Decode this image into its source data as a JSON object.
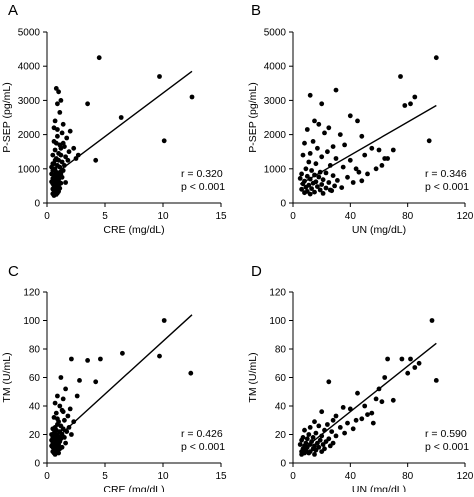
{
  "chart_data": [
    {
      "panel": "A",
      "type": "scatter",
      "xlabel": "CRE (mg/dL)",
      "ylabel": "P-SEP (pg/mL)",
      "xlim": [
        0,
        15
      ],
      "ylim": [
        0,
        5000
      ],
      "xticks": [
        0,
        5,
        10,
        15
      ],
      "yticks": [
        0,
        1000,
        2000,
        3000,
        4000,
        5000
      ],
      "stats": [
        "r = 0.320",
        "p < 0.001"
      ],
      "regression": {
        "x1": 0.5,
        "y1": 800,
        "x2": 12.5,
        "y2": 3850
      },
      "points": [
        [
          4.5,
          4250
        ],
        [
          9.7,
          3700
        ],
        [
          12.5,
          3100
        ],
        [
          10.1,
          1820
        ],
        [
          6.4,
          2500
        ],
        [
          3.5,
          2900
        ],
        [
          4.2,
          1250
        ],
        [
          0.8,
          3350
        ],
        [
          1.0,
          3250
        ],
        [
          1.2,
          3000
        ],
        [
          0.9,
          2900
        ],
        [
          1.1,
          2650
        ],
        [
          0.7,
          2400
        ],
        [
          1.4,
          2300
        ],
        [
          0.6,
          2200
        ],
        [
          0.9,
          2150
        ],
        [
          1.3,
          2050
        ],
        [
          2.0,
          2100
        ],
        [
          1.7,
          1900
        ],
        [
          0.6,
          1800
        ],
        [
          0.8,
          1750
        ],
        [
          1.1,
          1700
        ],
        [
          1.5,
          1650
        ],
        [
          2.3,
          1600
        ],
        [
          1.9,
          1500
        ],
        [
          0.7,
          1550
        ],
        [
          1.0,
          1450
        ],
        [
          1.2,
          1400
        ],
        [
          1.6,
          1350
        ],
        [
          0.5,
          1400
        ],
        [
          0.8,
          1300
        ],
        [
          1.0,
          1250
        ],
        [
          1.3,
          1200
        ],
        [
          0.6,
          1150
        ],
        [
          0.9,
          1100
        ],
        [
          1.1,
          1050
        ],
        [
          0.7,
          1000
        ],
        [
          1.4,
          950
        ],
        [
          0.5,
          950
        ],
        [
          0.8,
          900
        ],
        [
          1.0,
          880
        ],
        [
          1.2,
          850
        ],
        [
          0.6,
          820
        ],
        [
          0.9,
          800
        ],
        [
          0.7,
          760
        ],
        [
          1.1,
          740
        ],
        [
          0.5,
          720
        ],
        [
          0.8,
          700
        ],
        [
          1.0,
          680
        ],
        [
          0.6,
          650
        ],
        [
          0.9,
          630
        ],
        [
          0.7,
          600
        ],
        [
          1.2,
          580
        ],
        [
          0.5,
          560
        ],
        [
          0.8,
          540
        ],
        [
          1.0,
          520
        ],
        [
          0.6,
          500
        ],
        [
          0.9,
          480
        ],
        [
          0.7,
          450
        ],
        [
          1.1,
          430
        ],
        [
          0.5,
          410
        ],
        [
          0.8,
          390
        ],
        [
          0.6,
          360
        ],
        [
          1.0,
          340
        ],
        [
          0.7,
          310
        ],
        [
          0.9,
          290
        ],
        [
          0.5,
          270
        ],
        [
          0.8,
          250
        ],
        [
          0.6,
          220
        ],
        [
          1.2,
          900
        ],
        [
          1.5,
          1100
        ],
        [
          1.8,
          1250
        ],
        [
          2.5,
          1300
        ],
        [
          1.3,
          750
        ],
        [
          1.6,
          600
        ],
        [
          0.4,
          620
        ],
        [
          0.4,
          850
        ],
        [
          0.4,
          1050
        ],
        [
          1.2,
          1600
        ],
        [
          0.9,
          1950
        ],
        [
          0.7,
          1250
        ],
        [
          1.4,
          1750
        ],
        [
          2.7,
          1400
        ],
        [
          0.5,
          1150
        ]
      ]
    },
    {
      "panel": "B",
      "type": "scatter",
      "xlabel": "UN (mg/dL)",
      "ylabel": "P-SEP (pg/mL)",
      "xlim": [
        0,
        120
      ],
      "ylim": [
        0,
        5000
      ],
      "xticks": [
        0,
        40,
        80,
        120
      ],
      "yticks": [
        0,
        1000,
        2000,
        3000,
        4000,
        5000
      ],
      "stats": [
        "r = 0.346",
        "p < 0.001"
      ],
      "regression": {
        "x1": 5,
        "y1": 550,
        "x2": 100,
        "y2": 2850
      },
      "points": [
        [
          100,
          4250
        ],
        [
          75,
          3700
        ],
        [
          85,
          3100
        ],
        [
          82,
          2900
        ],
        [
          78,
          2850
        ],
        [
          30,
          3300
        ],
        [
          12,
          3150
        ],
        [
          20,
          2900
        ],
        [
          40,
          2550
        ],
        [
          45,
          2400
        ],
        [
          15,
          2400
        ],
        [
          18,
          2300
        ],
        [
          25,
          2200
        ],
        [
          10,
          2150
        ],
        [
          22,
          2050
        ],
        [
          33,
          2000
        ],
        [
          48,
          1950
        ],
        [
          55,
          1600
        ],
        [
          60,
          1550
        ],
        [
          64,
          1300
        ],
        [
          66,
          1300
        ],
        [
          70,
          1550
        ],
        [
          95,
          1820
        ],
        [
          50,
          1400
        ],
        [
          36,
          1700
        ],
        [
          28,
          1650
        ],
        [
          14,
          1800
        ],
        [
          8,
          1750
        ],
        [
          17,
          1600
        ],
        [
          24,
          1500
        ],
        [
          12,
          1450
        ],
        [
          7,
          1400
        ],
        [
          20,
          1350
        ],
        [
          30,
          1300
        ],
        [
          40,
          1250
        ],
        [
          11,
          1200
        ],
        [
          16,
          1150
        ],
        [
          26,
          1100
        ],
        [
          35,
          1050
        ],
        [
          44,
          1000
        ],
        [
          9,
          1000
        ],
        [
          13,
          950
        ],
        [
          19,
          900
        ],
        [
          23,
          880
        ],
        [
          6,
          850
        ],
        [
          15,
          820
        ],
        [
          28,
          800
        ],
        [
          10,
          780
        ],
        [
          18,
          760
        ],
        [
          38,
          750
        ],
        [
          5,
          720
        ],
        [
          12,
          700
        ],
        [
          21,
          680
        ],
        [
          31,
          660
        ],
        [
          8,
          640
        ],
        [
          16,
          620
        ],
        [
          25,
          600
        ],
        [
          14,
          580
        ],
        [
          7,
          560
        ],
        [
          20,
          540
        ],
        [
          11,
          520
        ],
        [
          29,
          500
        ],
        [
          17,
          480
        ],
        [
          9,
          460
        ],
        [
          23,
          440
        ],
        [
          13,
          420
        ],
        [
          6,
          400
        ],
        [
          19,
          380
        ],
        [
          27,
          360
        ],
        [
          10,
          340
        ],
        [
          15,
          320
        ],
        [
          8,
          300
        ],
        [
          21,
          280
        ],
        [
          12,
          260
        ],
        [
          46,
          900
        ],
        [
          52,
          850
        ],
        [
          58,
          1000
        ],
        [
          42,
          600
        ],
        [
          34,
          450
        ],
        [
          26,
          380
        ],
        [
          62,
          1100
        ],
        [
          48,
          650
        ]
      ]
    },
    {
      "panel": "C",
      "type": "scatter",
      "xlabel": "CRE (mg/dL)",
      "ylabel": "TM (U/mL)",
      "xlim": [
        0,
        15
      ],
      "ylim": [
        0,
        120
      ],
      "xticks": [
        0,
        5,
        10,
        15
      ],
      "yticks": [
        0,
        20,
        40,
        60,
        80,
        100,
        120
      ],
      "stats": [
        "r = 0.426",
        "p < 0.001"
      ],
      "regression": {
        "x1": 0.5,
        "y1": 15,
        "x2": 12.5,
        "y2": 104
      },
      "points": [
        [
          10.1,
          100
        ],
        [
          12.4,
          63
        ],
        [
          9.7,
          75
        ],
        [
          6.5,
          77
        ],
        [
          4.6,
          73
        ],
        [
          3.5,
          72
        ],
        [
          2.1,
          73
        ],
        [
          4.2,
          57
        ],
        [
          2.8,
          58
        ],
        [
          1.2,
          60
        ],
        [
          1.6,
          52
        ],
        [
          0.9,
          47
        ],
        [
          1.4,
          45
        ],
        [
          2.6,
          47
        ],
        [
          0.7,
          42
        ],
        [
          1.1,
          40
        ],
        [
          2.0,
          38
        ],
        [
          1.3,
          37
        ],
        [
          0.8,
          35
        ],
        [
          1.8,
          33
        ],
        [
          1.5,
          30
        ],
        [
          0.6,
          32
        ],
        [
          1.0,
          29
        ],
        [
          0.9,
          27
        ],
        [
          1.2,
          26
        ],
        [
          0.7,
          25
        ],
        [
          1.4,
          24
        ],
        [
          0.5,
          24
        ],
        [
          0.8,
          23
        ],
        [
          1.1,
          22
        ],
        [
          1.7,
          22
        ],
        [
          0.6,
          21
        ],
        [
          0.9,
          20
        ],
        [
          1.3,
          20
        ],
        [
          0.7,
          19
        ],
        [
          1.0,
          18
        ],
        [
          0.5,
          18
        ],
        [
          0.8,
          17
        ],
        [
          1.2,
          17
        ],
        [
          0.6,
          16
        ],
        [
          0.9,
          16
        ],
        [
          1.1,
          15
        ],
        [
          0.7,
          15
        ],
        [
          0.5,
          14
        ],
        [
          0.8,
          14
        ],
        [
          1.0,
          13
        ],
        [
          0.6,
          13
        ],
        [
          0.9,
          12
        ],
        [
          0.7,
          12
        ],
        [
          0.5,
          11
        ],
        [
          0.8,
          11
        ],
        [
          1.1,
          10
        ],
        [
          0.6,
          10
        ],
        [
          0.9,
          9
        ],
        [
          0.7,
          9
        ],
        [
          0.5,
          8
        ],
        [
          0.8,
          8
        ],
        [
          0.6,
          7
        ],
        [
          1.0,
          7
        ],
        [
          0.7,
          6
        ],
        [
          0.4,
          12
        ],
        [
          0.4,
          16
        ],
        [
          0.4,
          20
        ],
        [
          1.5,
          18
        ],
        [
          1.9,
          25
        ],
        [
          2.3,
          29
        ],
        [
          1.6,
          14
        ],
        [
          1.3,
          11
        ],
        [
          2.1,
          20
        ],
        [
          0.9,
          31
        ],
        [
          1.4,
          36
        ]
      ]
    },
    {
      "panel": "D",
      "type": "scatter",
      "xlabel": "UN (mg/dL)",
      "ylabel": "TM (U/mL)",
      "xlim": [
        0,
        120
      ],
      "ylim": [
        0,
        120
      ],
      "xticks": [
        0,
        40,
        80,
        120
      ],
      "yticks": [
        0,
        20,
        40,
        60,
        80,
        100,
        120
      ],
      "stats": [
        "r = 0.590",
        "p < 0.001"
      ],
      "regression": {
        "x1": 5,
        "y1": 8,
        "x2": 100,
        "y2": 84
      },
      "points": [
        [
          97,
          100
        ],
        [
          100,
          58
        ],
        [
          82,
          73
        ],
        [
          76,
          73
        ],
        [
          88,
          70
        ],
        [
          80,
          63
        ],
        [
          66,
          73
        ],
        [
          85,
          67
        ],
        [
          25,
          57
        ],
        [
          58,
          45
        ],
        [
          50,
          40
        ],
        [
          45,
          49
        ],
        [
          62,
          43
        ],
        [
          70,
          44
        ],
        [
          35,
          39
        ],
        [
          40,
          38
        ],
        [
          55,
          35
        ],
        [
          30,
          33
        ],
        [
          48,
          31
        ],
        [
          20,
          36
        ],
        [
          38,
          28
        ],
        [
          28,
          30
        ],
        [
          15,
          29
        ],
        [
          24,
          27
        ],
        [
          18,
          26
        ],
        [
          33,
          25
        ],
        [
          12,
          25
        ],
        [
          42,
          24
        ],
        [
          22,
          23
        ],
        [
          8,
          23
        ],
        [
          27,
          22
        ],
        [
          16,
          21
        ],
        [
          36,
          21
        ],
        [
          11,
          20
        ],
        [
          20,
          19
        ],
        [
          30,
          19
        ],
        [
          7,
          18
        ],
        [
          14,
          18
        ],
        [
          25,
          17
        ],
        [
          10,
          17
        ],
        [
          19,
          16
        ],
        [
          6,
          16
        ],
        [
          13,
          15
        ],
        [
          23,
          15
        ],
        [
          9,
          14
        ],
        [
          17,
          14
        ],
        [
          28,
          14
        ],
        [
          5,
          13
        ],
        [
          12,
          13
        ],
        [
          21,
          13
        ],
        [
          8,
          12
        ],
        [
          15,
          12
        ],
        [
          26,
          12
        ],
        [
          10,
          11
        ],
        [
          18,
          11
        ],
        [
          7,
          10
        ],
        [
          14,
          10
        ],
        [
          22,
          10
        ],
        [
          9,
          9
        ],
        [
          16,
          9
        ],
        [
          6,
          8
        ],
        [
          12,
          8
        ],
        [
          20,
          8
        ],
        [
          8,
          7
        ],
        [
          11,
          7
        ],
        [
          15,
          6
        ],
        [
          6,
          6
        ],
        [
          64,
          60
        ],
        [
          60,
          52
        ],
        [
          52,
          34
        ],
        [
          44,
          30
        ],
        [
          56,
          28
        ]
      ]
    }
  ]
}
